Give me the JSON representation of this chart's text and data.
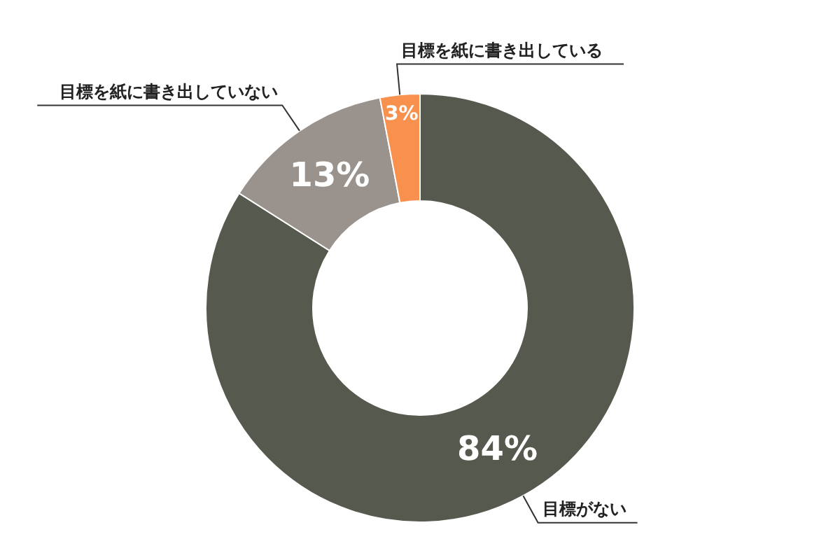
{
  "chart_data": {
    "type": "donut",
    "categories": [
      "目標がない",
      "目標を紙に書き出していない",
      "目標を紙に書き出している"
    ],
    "values": [
      84,
      13,
      3
    ],
    "colors": [
      "#565a4e",
      "#9a938d",
      "#f7914d"
    ],
    "value_labels": [
      "84%",
      "13%",
      "3%"
    ],
    "legend": false
  }
}
